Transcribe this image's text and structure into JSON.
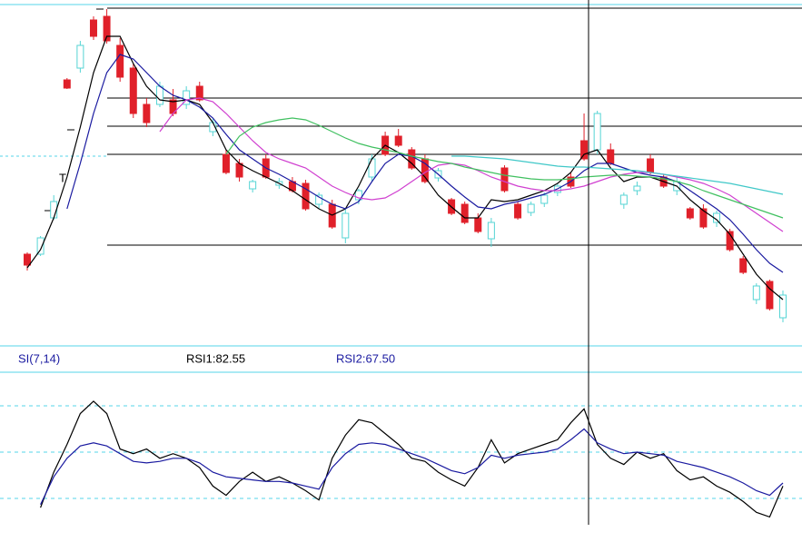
{
  "chart_data": [
    {
      "type": "candlestick",
      "label": "T",
      "ylim": [
        0,
        375
      ],
      "up_color": "#55d4d4",
      "down_color": "#e0202a",
      "levels": [
        371,
        272,
        241,
        210,
        110
      ],
      "values": [
        [
          100,
          102,
          82,
          88
        ],
        [
          100,
          120,
          98,
          118
        ],
        [
          140,
          165,
          138,
          158
        ],
        [
          292,
          294,
          282,
          283
        ],
        [
          305,
          335,
          300,
          330
        ],
        [
          358,
          362,
          336,
          340
        ],
        [
          362,
          370,
          332,
          335
        ],
        [
          330,
          338,
          290,
          295
        ],
        [
          305,
          310,
          250,
          255
        ],
        [
          265,
          272,
          240,
          245
        ],
        [
          265,
          290,
          262,
          285
        ],
        [
          270,
          282,
          252,
          255
        ],
        [
          265,
          285,
          260,
          280
        ],
        [
          285,
          290,
          268,
          270
        ],
        [
          235,
          250,
          230,
          245
        ],
        [
          210,
          215,
          188,
          190
        ],
        [
          200,
          205,
          180,
          185
        ],
        [
          172,
          182,
          168,
          180
        ],
        [
          205,
          210,
          183,
          185
        ],
        [
          176,
          184,
          172,
          180
        ],
        [
          180,
          185,
          168,
          170
        ],
        [
          178,
          182,
          148,
          150
        ],
        [
          155,
          168,
          150,
          165
        ],
        [
          155,
          160,
          128,
          130
        ],
        [
          118,
          150,
          112,
          145
        ],
        [
          160,
          172,
          155,
          170
        ],
        [
          185,
          210,
          180,
          205
        ],
        [
          230,
          235,
          208,
          210
        ],
        [
          230,
          238,
          218,
          220
        ],
        [
          215,
          218,
          193,
          195
        ],
        [
          205,
          210,
          178,
          180
        ],
        [
          184,
          195,
          180,
          192
        ],
        [
          160,
          162,
          143,
          145
        ],
        [
          155,
          158,
          133,
          135
        ],
        [
          140,
          145,
          123,
          125
        ],
        [
          117,
          140,
          108,
          135
        ],
        [
          195,
          198,
          168,
          170
        ],
        [
          155,
          158,
          138,
          140
        ],
        [
          146,
          158,
          142,
          155
        ],
        [
          156,
          168,
          152,
          165
        ],
        [
          168,
          178,
          164,
          175
        ],
        [
          185,
          190,
          173,
          175
        ],
        [
          225,
          255,
          203,
          205
        ],
        [
          215,
          258,
          210,
          255
        ],
        [
          215,
          222,
          198,
          200
        ],
        [
          155,
          168,
          150,
          165
        ],
        [
          170,
          180,
          165,
          175
        ],
        [
          205,
          210,
          188,
          190
        ],
        [
          185,
          188,
          173,
          175
        ],
        [
          170,
          185,
          165,
          180
        ],
        [
          150,
          152,
          138,
          140
        ],
        [
          150,
          155,
          128,
          130
        ],
        [
          135,
          148,
          130,
          145
        ],
        [
          125,
          128,
          103,
          105
        ],
        [
          95,
          98,
          78,
          80
        ],
        [
          50,
          68,
          45,
          65
        ],
        [
          70,
          72,
          38,
          40
        ],
        [
          30,
          60,
          25,
          55
        ]
      ],
      "lines": [
        {
          "color": "#000000",
          "values": [
            85,
            105,
            140,
            185,
            240,
            300,
            340,
            340,
            310,
            285,
            270,
            268,
            270,
            265,
            245,
            215,
            200,
            192,
            185,
            178,
            170,
            160,
            150,
            143,
            150,
            175,
            205,
            220,
            212,
            200,
            185,
            165,
            152,
            140,
            140,
            160,
            158,
            160,
            165,
            170,
            178,
            190,
            210,
            215,
            195,
            180,
            185,
            185,
            180,
            175,
            160,
            148,
            138,
            122,
            100,
            78,
            62,
            50
          ]
        },
        {
          "color": "#1a1aa0",
          "values": [
            null,
            null,
            null,
            150,
            200,
            255,
            300,
            320,
            315,
            300,
            285,
            275,
            270,
            262,
            250,
            232,
            215,
            205,
            195,
            188,
            180,
            172,
            163,
            155,
            150,
            158,
            180,
            200,
            210,
            208,
            200,
            188,
            175,
            163,
            152,
            150,
            155,
            158,
            162,
            166,
            172,
            180,
            192,
            200,
            200,
            195,
            190,
            187,
            185,
            180,
            170,
            160,
            150,
            138,
            122,
            105,
            90,
            80
          ]
        },
        {
          "color": "#d040d0",
          "values": [
            null,
            null,
            null,
            null,
            null,
            null,
            null,
            null,
            null,
            null,
            235,
            255,
            270,
            272,
            268,
            255,
            240,
            225,
            212,
            205,
            200,
            195,
            185,
            175,
            168,
            162,
            160,
            162,
            170,
            180,
            190,
            198,
            200,
            198,
            192,
            185,
            180,
            175,
            172,
            170,
            170,
            172,
            175,
            180,
            185,
            188,
            190,
            190,
            188,
            185,
            182,
            178,
            172,
            165,
            155,
            145,
            135,
            125
          ]
        },
        {
          "color": "#40c060",
          "values": [
            null,
            null,
            null,
            null,
            null,
            null,
            null,
            null,
            null,
            null,
            null,
            null,
            null,
            null,
            null,
            210,
            230,
            240,
            245,
            248,
            250,
            248,
            242,
            235,
            228,
            222,
            218,
            215,
            212,
            208,
            205,
            202,
            200,
            196,
            193,
            190,
            187,
            185,
            183,
            182,
            182,
            183,
            185,
            186,
            187,
            187,
            186,
            185,
            183,
            180,
            176,
            170,
            165,
            160,
            155,
            150,
            145,
            140
          ]
        },
        {
          "color": "#40c8c8",
          "values": [
            null,
            null,
            null,
            null,
            null,
            null,
            null,
            null,
            null,
            null,
            null,
            null,
            null,
            null,
            null,
            null,
            null,
            null,
            null,
            null,
            null,
            null,
            null,
            null,
            null,
            null,
            null,
            null,
            null,
            null,
            null,
            null,
            208,
            208,
            207,
            206,
            205,
            203,
            201,
            199,
            197,
            196,
            196,
            195,
            194,
            193,
            192,
            190,
            188,
            186,
            184,
            182,
            180,
            178,
            175,
            172,
            169,
            166
          ]
        }
      ]
    },
    {
      "type": "line",
      "title": "SI(7,14)",
      "ylim": [
        0,
        100
      ],
      "levels": [
        20,
        50,
        80
      ],
      "level_color": "#55d4e8",
      "series": [
        {
          "name": "RSI1:82.55",
          "color": "#000000",
          "values": [
            null,
            14,
            37,
            55,
            75,
            83,
            75,
            52,
            49,
            52,
            46,
            49,
            46,
            40,
            28,
            22,
            31,
            37,
            31,
            34,
            30,
            25,
            19,
            46,
            61,
            71,
            69,
            62,
            55,
            46,
            44,
            37,
            32,
            28,
            40,
            58,
            43,
            49,
            52,
            55,
            58,
            69,
            78,
            55,
            46,
            42,
            50,
            46,
            49,
            38,
            32,
            34,
            28,
            24,
            18,
            11,
            8,
            28
          ]
        },
        {
          "name": "RSI2:67.50",
          "color": "#1a1aa0",
          "values": [
            null,
            16,
            34,
            46,
            54,
            56,
            54,
            49,
            44,
            43,
            44,
            46,
            46,
            43,
            37,
            34,
            33,
            32,
            31,
            31,
            30,
            28,
            26,
            40,
            49,
            55,
            56,
            55,
            52,
            49,
            46,
            42,
            38,
            36,
            40,
            48,
            46,
            48,
            49,
            50,
            52,
            58,
            65,
            56,
            52,
            49,
            50,
            49,
            48,
            44,
            42,
            40,
            37,
            34,
            30,
            25,
            22,
            30
          ]
        }
      ]
    }
  ]
}
